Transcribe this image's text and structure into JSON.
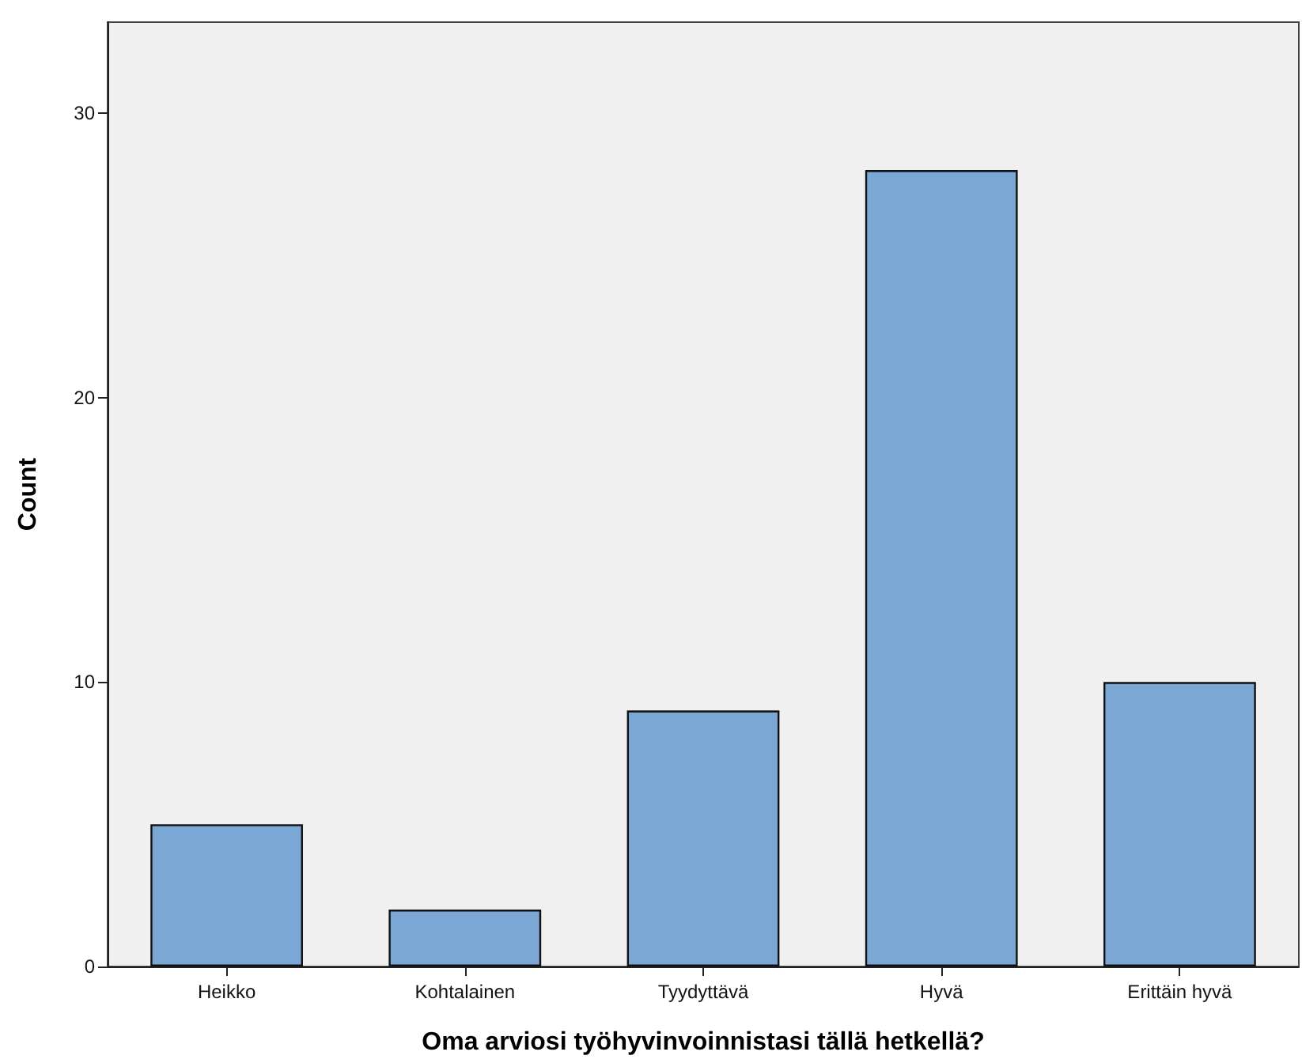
{
  "chart_data": {
    "type": "bar",
    "xlabel": "Oma arviosi työhyvinvoinnistasi tällä hetkellä?",
    "ylabel": "Count",
    "categories": [
      "Heikko",
      "Kohtalainen",
      "Tyydyttävä",
      "Hyvä",
      "Erittäin hyvä"
    ],
    "values": [
      5,
      2,
      9,
      28,
      10
    ],
    "color": "#7ba7d5",
    "ylim": [
      0,
      33.2
    ],
    "yticks": [
      0,
      10,
      20,
      30
    ]
  }
}
